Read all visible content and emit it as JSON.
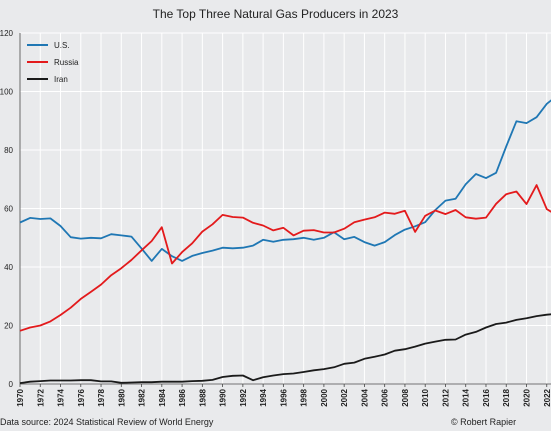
{
  "chart_data": {
    "type": "line",
    "title": "The Top Three Natural Gas Producers in 2023",
    "xlabel": "",
    "ylabel": "",
    "ylim": [
      0,
      120
    ],
    "yticks": [
      0,
      20,
      40,
      60,
      80,
      100,
      120
    ],
    "xlim": [
      1970,
      2023
    ],
    "xtick_labels": [
      "1970",
      "1972",
      "1974",
      "1976",
      "1978",
      "1980",
      "1982",
      "1984",
      "1986",
      "1988",
      "1990",
      "1992",
      "1994",
      "1996",
      "1998",
      "2000",
      "2002",
      "2004",
      "2006",
      "2008",
      "2010",
      "2012",
      "2014",
      "2016",
      "2018",
      "2020",
      "2022"
    ],
    "grid": true,
    "legend_position": "top-left",
    "colors": {
      "background": "#e9eaec",
      "grid": "#ffffff",
      "axis": "#444444"
    },
    "x": [
      1970,
      1971,
      1972,
      1973,
      1974,
      1975,
      1976,
      1977,
      1978,
      1979,
      1980,
      1981,
      1982,
      1983,
      1984,
      1985,
      1986,
      1987,
      1988,
      1989,
      1990,
      1991,
      1992,
      1993,
      1994,
      1995,
      1996,
      1997,
      1998,
      1999,
      2000,
      2001,
      2002,
      2003,
      2004,
      2005,
      2006,
      2007,
      2008,
      2009,
      2010,
      2011,
      2012,
      2013,
      2014,
      2015,
      2016,
      2017,
      2018,
      2019,
      2020,
      2021,
      2022,
      2023
    ],
    "series": [
      {
        "name": "U.S.",
        "color": "#1f77b4",
        "values": [
          55.2,
          56.8,
          56.4,
          56.6,
          54.0,
          50.2,
          49.7,
          50.0,
          49.8,
          51.2,
          50.8,
          50.4,
          46.3,
          42.1,
          46.2,
          43.7,
          42.1,
          43.8,
          44.8,
          45.6,
          46.6,
          46.4,
          46.6,
          47.3,
          49.3,
          48.6,
          49.3,
          49.5,
          50.0,
          49.3,
          50.0,
          51.9,
          49.5,
          50.3,
          48.5,
          47.3,
          48.5,
          50.9,
          52.8,
          53.9,
          55.3,
          59.5,
          62.7,
          63.3,
          68.3,
          71.8,
          70.4,
          72.2,
          81.2,
          89.8,
          89.2,
          91.2,
          95.8,
          98.5
        ]
      },
      {
        "name": "Russia",
        "color": "#e31a1c",
        "values": [
          18.2,
          19.3,
          20.0,
          21.4,
          23.6,
          26.1,
          29.1,
          31.5,
          34.0,
          37.2,
          39.6,
          42.4,
          45.7,
          48.9,
          53.6,
          41.2,
          45.1,
          48.1,
          52.1,
          54.6,
          57.8,
          57.1,
          56.9,
          55.1,
          54.2,
          52.5,
          53.4,
          50.8,
          52.4,
          52.6,
          51.8,
          51.8,
          53.1,
          55.3,
          56.2,
          57.0,
          58.6,
          58.2,
          59.2,
          52.0,
          57.5,
          59.3,
          58.1,
          59.5,
          57.0,
          56.5,
          56.9,
          61.6,
          64.9,
          65.8,
          61.5,
          68.0,
          59.8,
          57.7
        ]
      },
      {
        "name": "Iran",
        "color": "#1a1a1a",
        "values": [
          0.3,
          0.8,
          1.0,
          1.2,
          1.2,
          1.2,
          1.3,
          1.3,
          0.9,
          0.9,
          0.4,
          0.5,
          0.6,
          0.6,
          0.8,
          0.8,
          0.8,
          1.0,
          1.1,
          1.4,
          2.4,
          2.8,
          2.9,
          1.3,
          2.3,
          2.9,
          3.4,
          3.6,
          4.1,
          4.7,
          5.1,
          5.7,
          6.9,
          7.3,
          8.6,
          9.3,
          10.1,
          11.4,
          11.9,
          12.8,
          13.8,
          14.5,
          15.1,
          15.2,
          16.9,
          17.8,
          19.3,
          20.5,
          21.0,
          21.9,
          22.5,
          23.2,
          23.7,
          24.0
        ]
      }
    ]
  },
  "source": {
    "left": "Data source: 2024 Statistical Review of World Energy",
    "right": "© Robert Rapier"
  }
}
